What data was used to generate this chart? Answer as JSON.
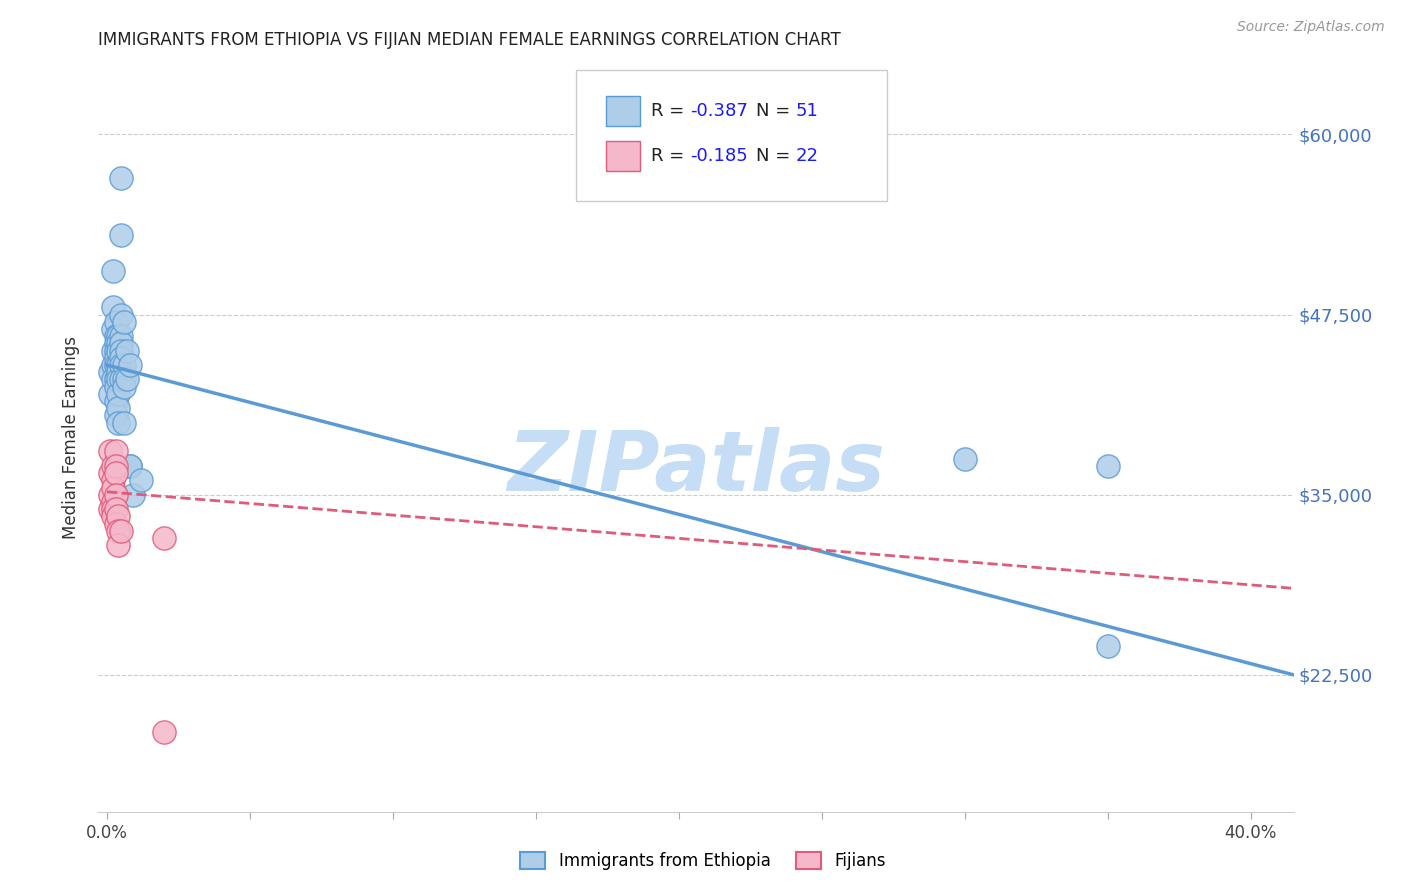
{
  "title": "IMMIGRANTS FROM ETHIOPIA VS FIJIAN MEDIAN FEMALE EARNINGS CORRELATION CHART",
  "source": "Source: ZipAtlas.com",
  "ylabel": "Median Female Earnings",
  "ytick_labels": [
    "$22,500",
    "$35,000",
    "$47,500",
    "$60,000"
  ],
  "ytick_values": [
    22500,
    35000,
    47500,
    60000
  ],
  "ymin": 13000,
  "ymax": 65000,
  "xmin": -0.003,
  "xmax": 0.415,
  "ethiopia_points": [
    [
      0.001,
      43500
    ],
    [
      0.001,
      42000
    ],
    [
      0.002,
      50500
    ],
    [
      0.002,
      48000
    ],
    [
      0.002,
      46500
    ],
    [
      0.002,
      45000
    ],
    [
      0.002,
      44000
    ],
    [
      0.002,
      43000
    ],
    [
      0.003,
      47000
    ],
    [
      0.003,
      46000
    ],
    [
      0.003,
      45500
    ],
    [
      0.003,
      45000
    ],
    [
      0.003,
      44500
    ],
    [
      0.003,
      44000
    ],
    [
      0.003,
      43000
    ],
    [
      0.003,
      42500
    ],
    [
      0.003,
      41500
    ],
    [
      0.003,
      40500
    ],
    [
      0.004,
      46000
    ],
    [
      0.004,
      45500
    ],
    [
      0.004,
      45000
    ],
    [
      0.004,
      44000
    ],
    [
      0.004,
      43500
    ],
    [
      0.004,
      43000
    ],
    [
      0.004,
      42000
    ],
    [
      0.004,
      41000
    ],
    [
      0.004,
      40000
    ],
    [
      0.005,
      57000
    ],
    [
      0.005,
      53000
    ],
    [
      0.005,
      47500
    ],
    [
      0.005,
      46000
    ],
    [
      0.005,
      45500
    ],
    [
      0.005,
      45000
    ],
    [
      0.005,
      44500
    ],
    [
      0.005,
      44000
    ],
    [
      0.005,
      43000
    ],
    [
      0.006,
      47000
    ],
    [
      0.006,
      44000
    ],
    [
      0.006,
      43000
    ],
    [
      0.006,
      42500
    ],
    [
      0.006,
      40000
    ],
    [
      0.007,
      45000
    ],
    [
      0.007,
      43000
    ],
    [
      0.008,
      44000
    ],
    [
      0.008,
      37000
    ],
    [
      0.008,
      37000
    ],
    [
      0.009,
      35000
    ],
    [
      0.012,
      36000
    ],
    [
      0.3,
      37500
    ],
    [
      0.35,
      37000
    ],
    [
      0.35,
      24500
    ]
  ],
  "fijian_points": [
    [
      0.001,
      38000
    ],
    [
      0.001,
      36500
    ],
    [
      0.001,
      35000
    ],
    [
      0.001,
      34000
    ],
    [
      0.002,
      37000
    ],
    [
      0.002,
      36000
    ],
    [
      0.002,
      35500
    ],
    [
      0.002,
      34500
    ],
    [
      0.002,
      34000
    ],
    [
      0.002,
      33500
    ],
    [
      0.003,
      38000
    ],
    [
      0.003,
      37000
    ],
    [
      0.003,
      36500
    ],
    [
      0.003,
      35000
    ],
    [
      0.003,
      34000
    ],
    [
      0.003,
      33000
    ],
    [
      0.004,
      33500
    ],
    [
      0.004,
      32500
    ],
    [
      0.004,
      31500
    ],
    [
      0.005,
      32500
    ],
    [
      0.02,
      32000
    ],
    [
      0.02,
      18500
    ]
  ],
  "ethiopia_line_x": [
    0.0,
    0.415
  ],
  "ethiopia_line_y": [
    44000,
    22500
  ],
  "fijian_line_x": [
    0.0,
    0.415
  ],
  "fijian_line_y": [
    35200,
    28500
  ],
  "ethiopia_color": "#5b9bd5",
  "fijian_color": "#e05a7a",
  "ethiopia_fill": "#aecde8",
  "fijian_fill": "#f5b8cb",
  "watermark": "ZIPatlas",
  "watermark_color": "#c5ddf5",
  "background_color": "#ffffff",
  "grid_color": "#cccccc",
  "legend_r1": "R = -0.387",
  "legend_n1": "N = 51",
  "legend_r2": "R = -0.185",
  "legend_n2": "N = 22",
  "legend_color_r": "#1a1aff",
  "legend_color_n": "#1a1aff",
  "legend_color_text": "#222222"
}
